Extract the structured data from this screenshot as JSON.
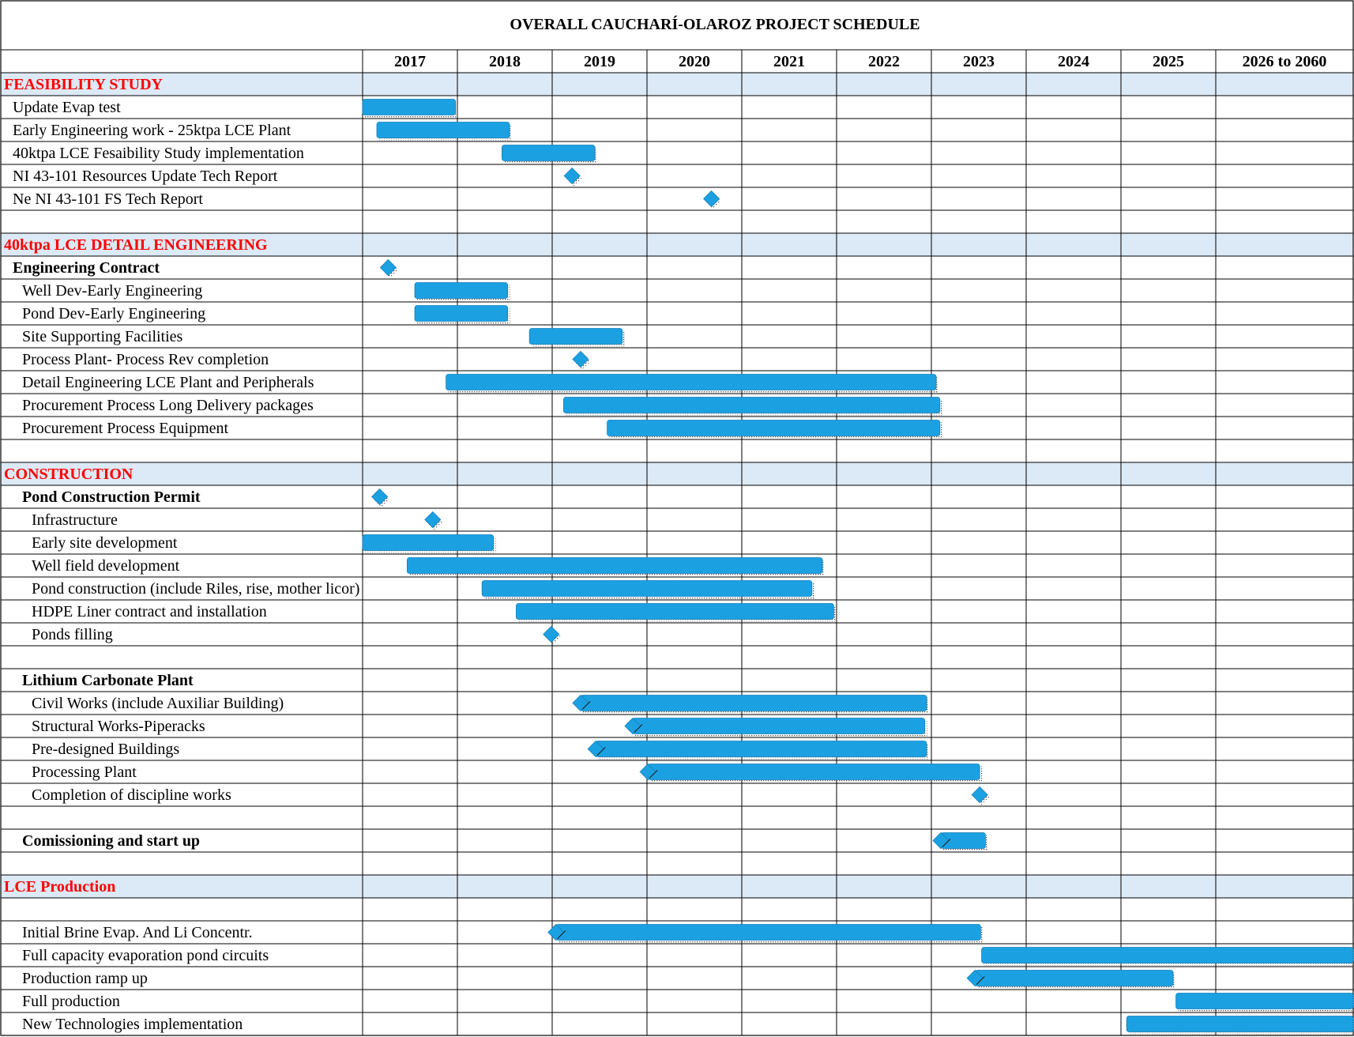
{
  "chart_data": {
    "type": "gantt",
    "title": "OVERALL CAUCHARÍ-OLAROZ PROJECT SCHEDULE",
    "columns": [
      "2017",
      "2018",
      "2019",
      "2020",
      "2021",
      "2022",
      "2023",
      "2024",
      "2025",
      "2026 to 2060"
    ],
    "column_start_year": 2017,
    "bar_color": "#1ba1e2",
    "section_fill": "#dce9f6",
    "section_text_color": "#ff0000",
    "rows": [
      {
        "label": "FEASIBILITY STUDY",
        "kind": "section"
      },
      {
        "label": "Update Evap test",
        "kind": "task",
        "indent": 1,
        "start": 2017.0,
        "end": 2017.98
      },
      {
        "label": "Early Engineering work - 25ktpa LCE Plant",
        "kind": "task",
        "indent": 1,
        "start": 2017.15,
        "end": 2018.55
      },
      {
        "label": "40ktpa LCE Fesaibility Study implementation",
        "kind": "task",
        "indent": 1,
        "start": 2018.47,
        "end": 2019.45
      },
      {
        "label": "NI 43-101 Resources Update Tech Report",
        "kind": "milestone",
        "indent": 1,
        "at": 2019.21
      },
      {
        "label": "Ne NI 43-101 FS Tech Report",
        "kind": "milestone",
        "indent": 1,
        "at": 2020.68
      },
      {
        "label": "",
        "kind": "blank"
      },
      {
        "label": "40ktpa LCE DETAIL ENGINEERING",
        "kind": "section"
      },
      {
        "label": "Engineering Contract",
        "kind": "group",
        "indent": 1,
        "milestone": 2017.27
      },
      {
        "label": "Well Dev-Early Engineering",
        "kind": "task",
        "indent": 2,
        "start": 2017.55,
        "end": 2018.53
      },
      {
        "label": "Pond Dev-Early Engineering",
        "kind": "task",
        "indent": 2,
        "start": 2017.55,
        "end": 2018.53
      },
      {
        "label": "Site Supporting Facilities",
        "kind": "task",
        "indent": 2,
        "start": 2018.76,
        "end": 2019.74
      },
      {
        "label": "Process Plant- Process Rev completion",
        "kind": "milestone",
        "indent": 2,
        "at": 2019.3
      },
      {
        "label": "Detail Engineering LCE Plant and Peripherals",
        "kind": "task",
        "indent": 2,
        "start": 2017.88,
        "end": 2023.05
      },
      {
        "label": "Procurement Process Long Delivery packages",
        "kind": "task",
        "indent": 2,
        "start": 2019.12,
        "end": 2023.09
      },
      {
        "label": "Procurement Process Equipment",
        "kind": "task",
        "indent": 2,
        "start": 2019.58,
        "end": 2023.09
      },
      {
        "label": "",
        "kind": "blank"
      },
      {
        "label": "CONSTRUCTION",
        "kind": "section"
      },
      {
        "label": "Pond Construction Permit",
        "kind": "group",
        "indent": 2,
        "milestone": 2017.18
      },
      {
        "label": "Infrastructure",
        "kind": "milestone",
        "indent": 3,
        "at": 2017.74
      },
      {
        "label": "Early site development",
        "kind": "task",
        "indent": 3,
        "start": 2017.0,
        "end": 2018.38
      },
      {
        "label": "Well field development",
        "kind": "task",
        "indent": 3,
        "start": 2017.47,
        "end": 2021.85
      },
      {
        "label": "Pond construction (include Riles, rise, mother licor)",
        "kind": "task",
        "indent": 3,
        "start": 2018.26,
        "end": 2021.74
      },
      {
        "label": "HDPE Liner contract and installation",
        "kind": "task",
        "indent": 3,
        "start": 2018.62,
        "end": 2021.97
      },
      {
        "label": "Ponds filling",
        "kind": "milestone",
        "indent": 3,
        "at": 2018.99
      },
      {
        "label": "",
        "kind": "blank"
      },
      {
        "label": "Lithium Carbonate Plant",
        "kind": "group",
        "indent": 2
      },
      {
        "label": "Civil Works (include Auxiliar Building)",
        "kind": "task",
        "indent": 3,
        "start": 2019.3,
        "end": 2022.95,
        "lead": true
      },
      {
        "label": "Structural Works-Piperacks",
        "kind": "task",
        "indent": 3,
        "start": 2019.85,
        "end": 2022.93,
        "lead": true
      },
      {
        "label": "Pre-designed Buildings",
        "kind": "task",
        "indent": 3,
        "start": 2019.46,
        "end": 2022.95,
        "lead": true
      },
      {
        "label": "Processing Plant",
        "kind": "task",
        "indent": 3,
        "start": 2020.01,
        "end": 2023.51,
        "lead": true
      },
      {
        "label": "Completion of discipline works",
        "kind": "milestone",
        "indent": 3,
        "at": 2023.51
      },
      {
        "label": "",
        "kind": "blank"
      },
      {
        "label": "Comissioning and start up",
        "kind": "group",
        "indent": 2,
        "start": 2023.1,
        "end": 2023.57,
        "lead": true
      },
      {
        "label": "",
        "kind": "blank"
      },
      {
        "label": "LCE Production",
        "kind": "section"
      },
      {
        "label": "",
        "kind": "blank"
      },
      {
        "label": "Initial Brine Evap. And Li Concentr.",
        "kind": "task",
        "indent": 2,
        "start": 2019.04,
        "end": 2023.52,
        "lead": true
      },
      {
        "label": "Full capacity evaporation pond circuits",
        "kind": "task",
        "indent": 2,
        "start": 2023.53,
        "end": 2027.0
      },
      {
        "label": "Production ramp up",
        "kind": "task",
        "indent": 2,
        "start": 2023.46,
        "end": 2025.55,
        "lead": true
      },
      {
        "label": "Full production",
        "kind": "task",
        "indent": 2,
        "start": 2025.58,
        "end": 2027.0
      },
      {
        "label": "New Technologies implementation",
        "kind": "task",
        "indent": 2,
        "start": 2025.06,
        "end": 2027.0
      }
    ]
  }
}
